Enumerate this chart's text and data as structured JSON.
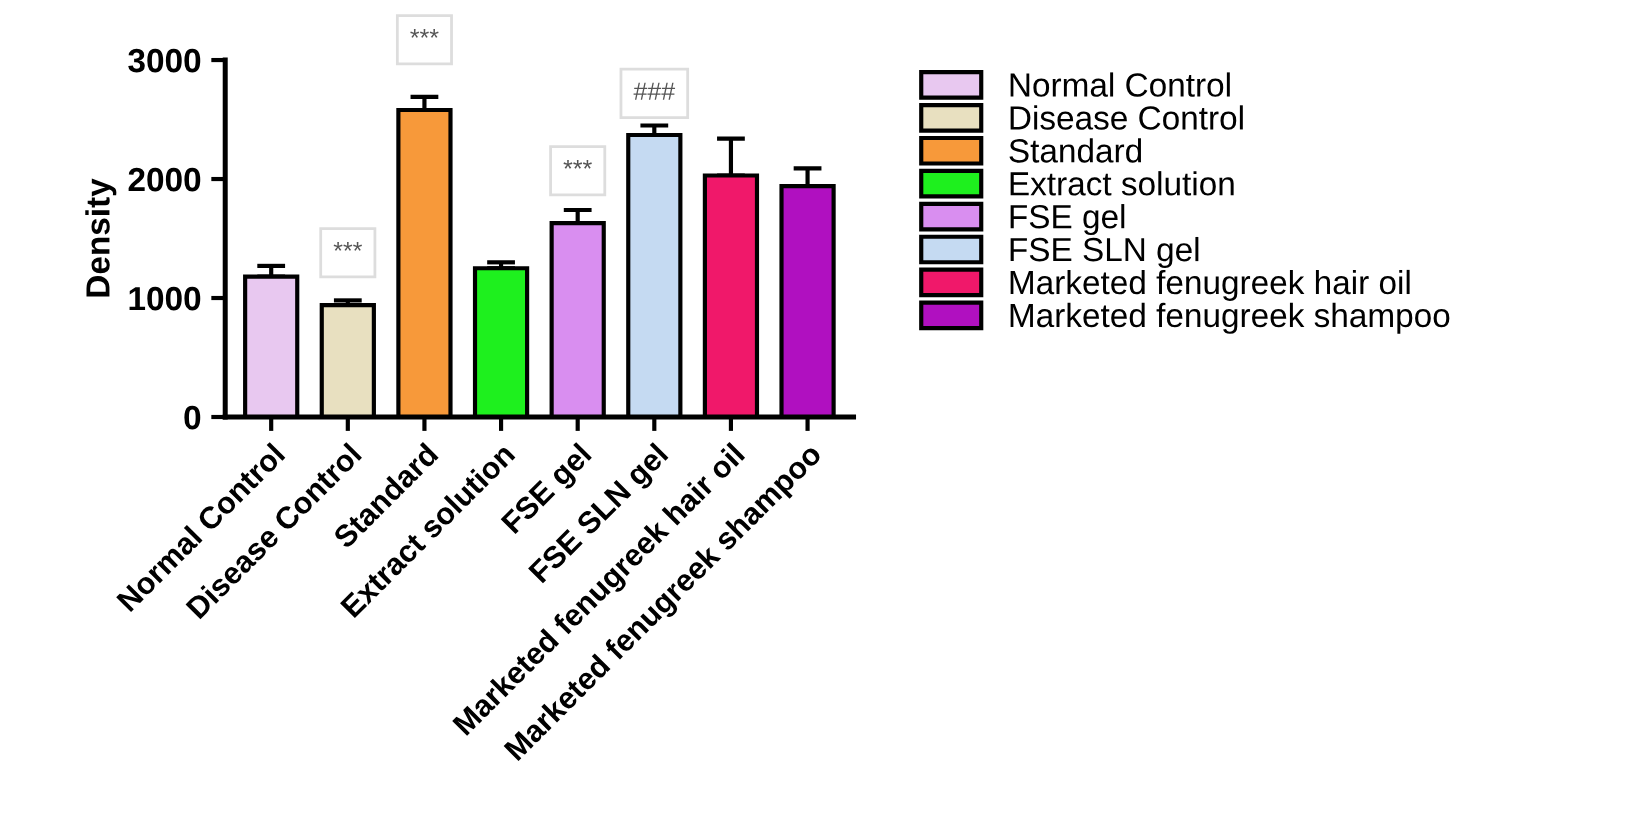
{
  "chart_data": {
    "type": "bar",
    "ylabel": "Density",
    "categories": [
      "Normal Control",
      "Disease Control",
      "Standard",
      "Extract solution",
      "FSE gel",
      "FSE SLN gel",
      "Marketed fenugreek hair oil",
      "Marketed fenugreek shampoo"
    ],
    "series": [
      {
        "name": "Normal Control",
        "color": "#e8c8f0",
        "values": [
          1180,
          null,
          null,
          null,
          null,
          null,
          null,
          null
        ],
        "errors": [
          [
            1180,
            1270
          ],
          null,
          null,
          null,
          null,
          null,
          null,
          null
        ]
      },
      {
        "name": "Disease Control",
        "color": "#e8e0c0",
        "values": [
          null,
          940,
          null,
          null,
          null,
          null,
          null,
          null
        ],
        "errors": [
          null,
          [
            940,
            980
          ],
          null,
          null,
          null,
          null,
          null,
          null
        ]
      },
      {
        "name": "Standard",
        "color": "#f7993a",
        "values": [
          null,
          null,
          2580,
          null,
          null,
          null,
          null,
          null
        ],
        "errors": [
          null,
          null,
          [
            2580,
            2690
          ],
          null,
          null,
          null,
          null,
          null
        ]
      },
      {
        "name": "Extract solution",
        "color": "#1ef01e",
        "values": [
          null,
          null,
          null,
          1250,
          null,
          null,
          null,
          null
        ],
        "errors": [
          null,
          null,
          null,
          [
            1250,
            1300
          ],
          null,
          null,
          null,
          null
        ]
      },
      {
        "name": "FSE gel",
        "color": "#d98ef0",
        "values": [
          null,
          null,
          null,
          null,
          1630,
          null,
          null,
          null
        ],
        "errors": [
          null,
          null,
          null,
          null,
          [
            1630,
            1740
          ],
          null,
          null,
          null
        ]
      },
      {
        "name": "FSE SLN gel",
        "color": "#c5daf2",
        "values": [
          null,
          null,
          null,
          null,
          null,
          2370,
          null,
          null
        ],
        "errors": [
          null,
          null,
          null,
          null,
          null,
          [
            2370,
            2450
          ],
          null,
          null
        ]
      },
      {
        "name": "Marketed fenugreek hair oil",
        "color": "#f0186a",
        "values": [
          null,
          null,
          null,
          null,
          null,
          null,
          2030,
          null
        ],
        "errors": [
          null,
          null,
          null,
          null,
          null,
          null,
          [
            2030,
            2340
          ],
          null
        ]
      },
      {
        "name": "Marketed fenugreek shampoo",
        "color": "#b010c0",
        "values": [
          null,
          null,
          null,
          null,
          null,
          null,
          null,
          1940
        ],
        "errors": [
          null,
          null,
          null,
          null,
          null,
          null,
          null,
          [
            1940,
            2090
          ]
        ]
      }
    ],
    "ylim": [
      0,
      3000
    ],
    "yticks": [
      0,
      1000,
      2000,
      3000
    ],
    "legend": "right",
    "annotations": [
      {
        "text": "***",
        "x": "Disease Control",
        "y": 1380
      },
      {
        "text": "***",
        "x": "Standard",
        "y": 3170
      },
      {
        "text": "***",
        "x": "FSE gel",
        "y": 2070
      },
      {
        "text": "###",
        "x": "FSE SLN gel",
        "y": 2720
      }
    ]
  }
}
